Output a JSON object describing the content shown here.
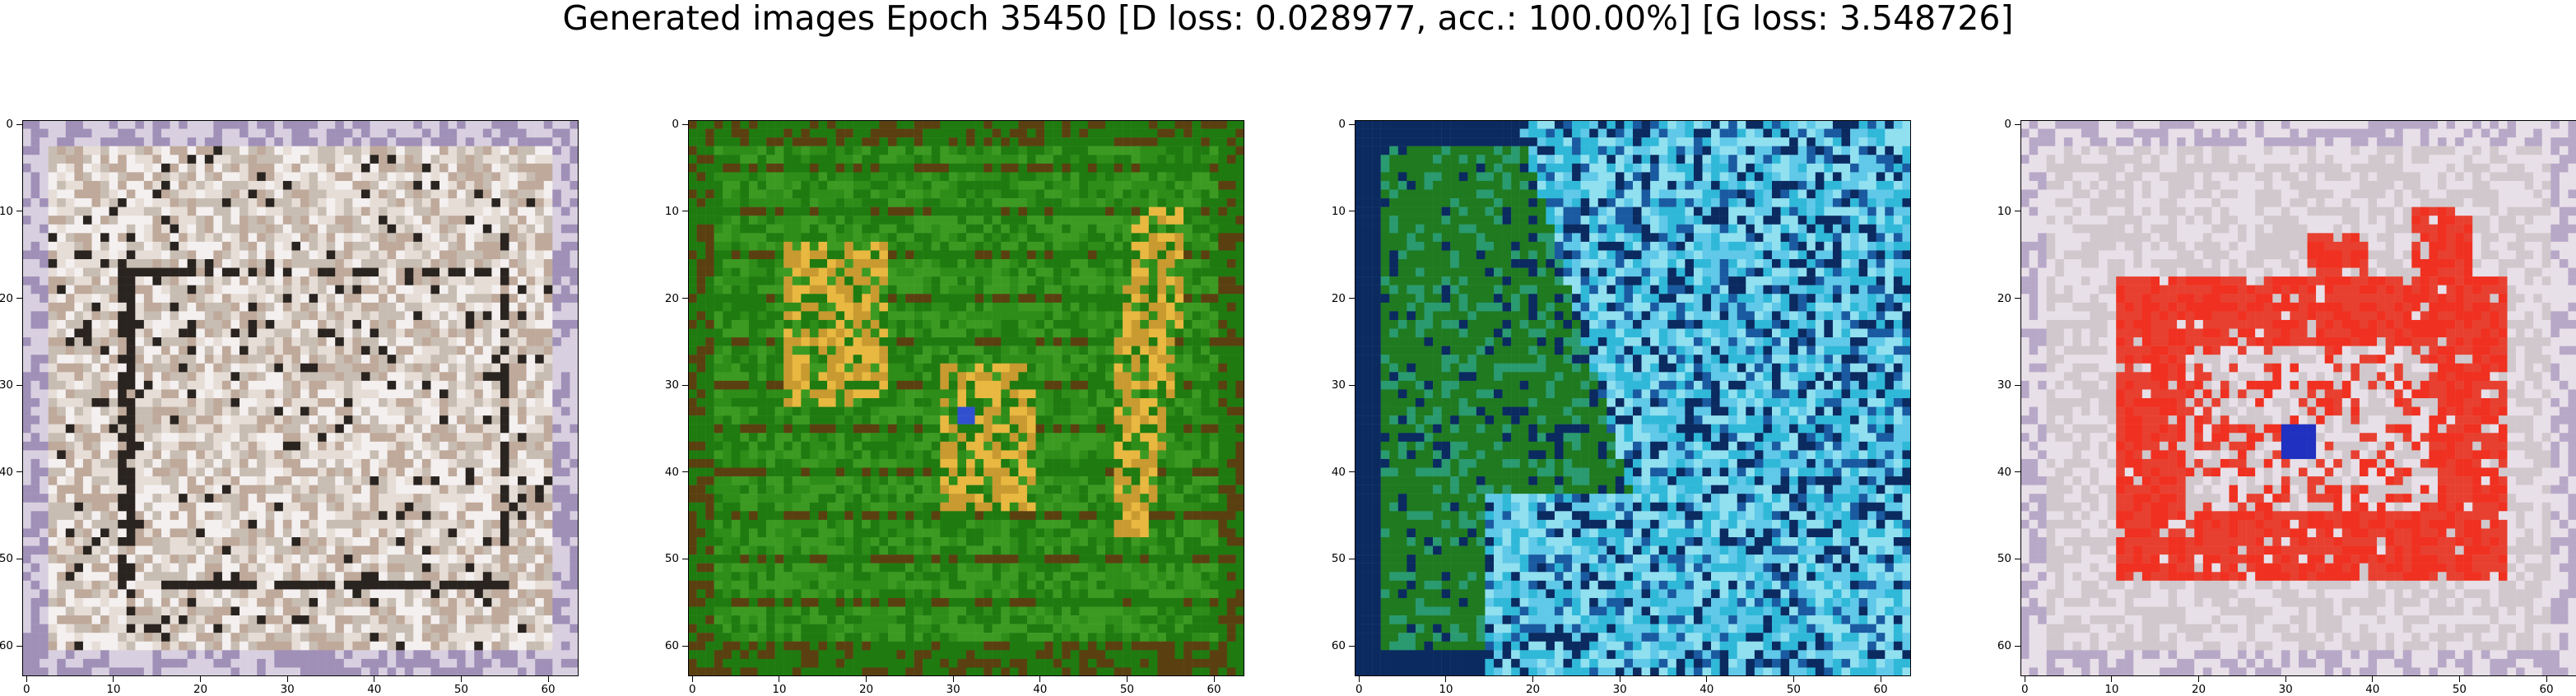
{
  "title": "Generated images Epoch 35450 [D loss: 0.028977, acc.: 100.00%] [G loss: 3.548726]",
  "chart_data": [
    {
      "type": "heatmap",
      "description_of_content": "generated 64x64 image, greyish-white background with dark block outlines",
      "palette": [
        "#c8bdb2",
        "#e6ddd6",
        "#f4f0f0",
        "#bfa99a",
        "#2a2420",
        "#a090b8",
        "#d8d0e0"
      ],
      "xlim": [
        -0.5,
        63.5
      ],
      "ylim": [
        63.5,
        -0.5
      ],
      "xticks": [
        0,
        10,
        20,
        30,
        40,
        50,
        60
      ],
      "yticks": [
        0,
        10,
        20,
        30,
        40,
        50,
        60
      ]
    },
    {
      "type": "heatmap",
      "description_of_content": "generated 64x64 image, green background with orange/yellow shapes",
      "palette": [
        "#1f7a10",
        "#2e8c18",
        "#3c9a22",
        "#c89a30",
        "#e8b840",
        "#5a4010",
        "#3050d0"
      ],
      "xlim": [
        -0.5,
        63.5
      ],
      "ylim": [
        63.5,
        -0.5
      ],
      "xticks": [
        0,
        10,
        20,
        30,
        40,
        50,
        60
      ],
      "yticks": [
        0,
        10,
        20,
        30,
        40,
        50,
        60
      ]
    },
    {
      "type": "heatmap",
      "description_of_content": "generated 64x64 image, green left side blending into cyan/blue right side",
      "palette": [
        "#1f7a20",
        "#2a9a70",
        "#30b8d8",
        "#60c8e8",
        "#0a2a60",
        "#1a5aa0",
        "#90e0f0"
      ],
      "xlim": [
        -0.5,
        63.5
      ],
      "ylim": [
        63.5,
        -0.5
      ],
      "xticks": [
        0,
        10,
        20,
        30,
        40,
        50,
        60
      ],
      "yticks": [
        0,
        10,
        20,
        30,
        40,
        50,
        60
      ]
    },
    {
      "type": "heatmap",
      "description_of_content": "generated 64x64 image, pale background with large red region and cyan/blue accents",
      "palette": [
        "#d0c8cc",
        "#e8e0e8",
        "#f03020",
        "#e84030",
        "#60c0c0",
        "#2030c0",
        "#b8a8c8"
      ],
      "xlim": [
        -0.5,
        63.5
      ],
      "ylim": [
        63.5,
        -0.5
      ],
      "xticks": [
        0,
        10,
        20,
        30,
        40,
        50,
        60
      ],
      "yticks": [
        0,
        10,
        20,
        30,
        40,
        50,
        60
      ]
    }
  ]
}
